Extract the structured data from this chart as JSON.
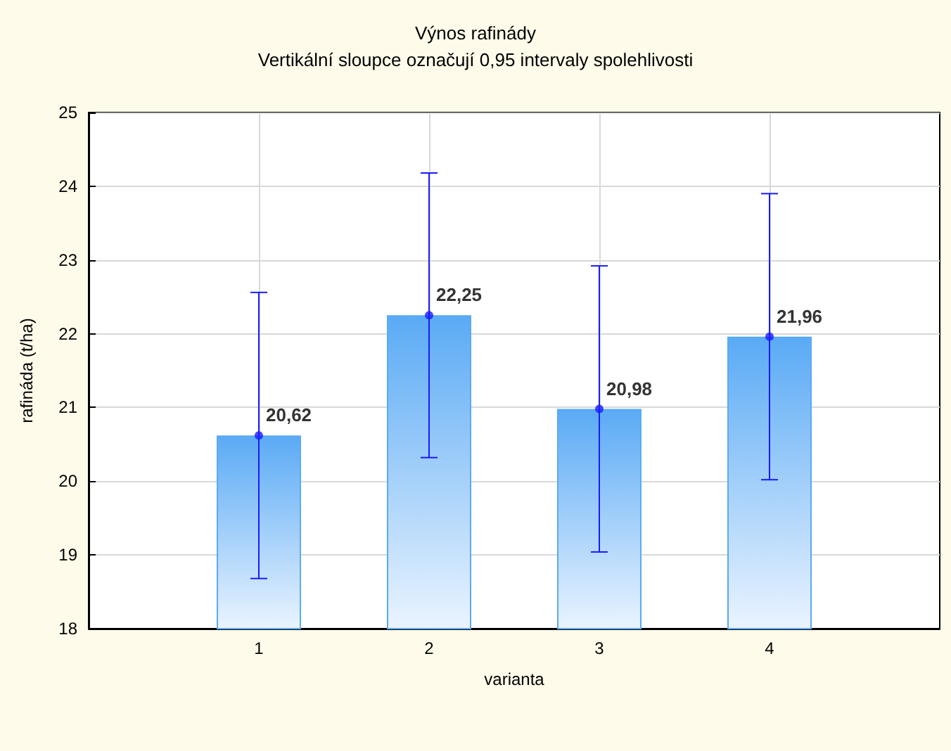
{
  "chart_data": {
    "type": "bar",
    "title": "Výnos rafinády",
    "subtitle": "Vertikální sloupce označují 0,95 intervaly spolehlivosti",
    "xlabel": "varianta",
    "ylabel": "rafináda (t/ha)",
    "x": [
      1,
      2,
      3,
      4
    ],
    "series": [
      {
        "color": "#5aaaf5",
        "values": [
          20.62,
          22.25,
          20.98,
          21.96
        ]
      },
      {
        "type": "scatter",
        "color": "#1a1aff",
        "values": [
          20.62,
          22.25,
          20.98,
          21.96
        ],
        "errors": [
          1.94,
          1.93,
          1.94,
          1.94
        ],
        "value_labels": [
          "20,62",
          "22,25",
          "20,98",
          "21,96"
        ]
      }
    ],
    "marker": "circle",
    "xlim": [
      0,
      5
    ],
    "xticks": [
      1,
      2,
      3,
      4
    ],
    "ylim": [
      18,
      25
    ],
    "yticks": [
      18,
      19,
      20,
      21,
      22,
      23,
      24,
      25
    ],
    "grid": true
  }
}
